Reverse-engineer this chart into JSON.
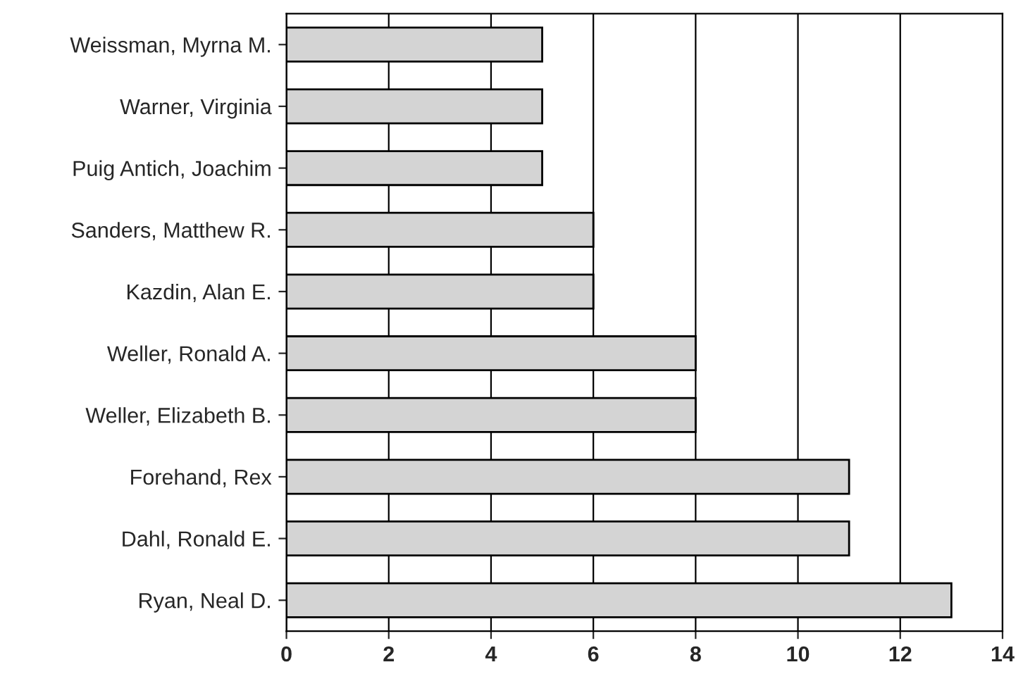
{
  "chart_data": {
    "type": "bar",
    "orientation": "horizontal",
    "categories": [
      "Weissman, Myrna M.",
      "Warner, Virginia",
      "Puig Antich, Joachim",
      "Sanders, Matthew R.",
      "Kazdin, Alan E.",
      "Weller, Ronald A.",
      "Weller, Elizabeth B.",
      "Forehand, Rex",
      "Dahl, Ronald E.",
      "Ryan, Neal D."
    ],
    "values": [
      5,
      5,
      5,
      6,
      6,
      8,
      8,
      11,
      11,
      13
    ],
    "color": "#d4d4d4",
    "xlim": [
      0,
      14
    ],
    "xticks": [
      0,
      2,
      4,
      6,
      8,
      10,
      12,
      14
    ],
    "grid": "x"
  }
}
